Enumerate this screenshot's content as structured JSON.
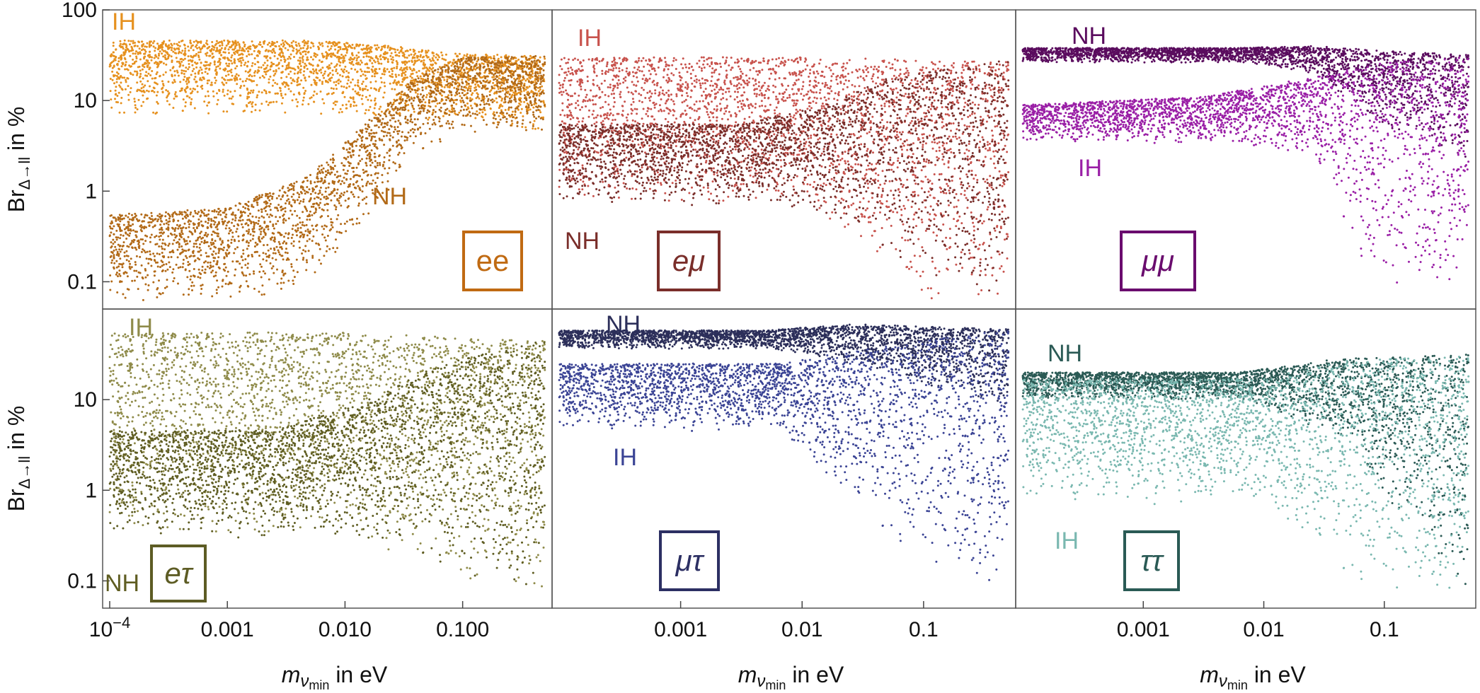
{
  "chart_data": [
    {
      "type": "scatter",
      "title": "",
      "panel": "ee",
      "label": "ee",
      "color": "#c06a12",
      "series": [
        {
          "name": "IH",
          "color": "#e6911f",
          "profile": [
            [
              -4.0,
              6.8,
              46
            ],
            [
              -2.3,
              6.8,
              46
            ],
            [
              -1.6,
              6.6,
              40
            ],
            [
              -1.1,
              5.6,
              33
            ],
            [
              -0.3,
              4.3,
              31
            ]
          ]
        },
        {
          "name": "NH",
          "color": "#b26a18",
          "profile": [
            [
              -4.0,
              0.06,
              0.55
            ],
            [
              -3.0,
              0.06,
              0.65
            ],
            [
              -2.3,
              0.08,
              1.5
            ],
            [
              -1.8,
              0.5,
              6.0
            ],
            [
              -1.4,
              2.5,
              18
            ],
            [
              -1.0,
              4.5,
              30
            ],
            [
              -0.3,
              4.3,
              31
            ]
          ]
        }
      ],
      "annotations": [
        "IH",
        "NH"
      ],
      "ylabel": "Br_{Δ→ll} in %",
      "ylim": [
        0.05,
        100
      ],
      "xlim": [
        -4.0,
        -0.3
      ],
      "yscale": "log",
      "yticks": [
        "100",
        "10",
        "1",
        "0.1"
      ]
    },
    {
      "type": "scatter",
      "title": "",
      "panel": "eμ",
      "label": "eμ",
      "color": "#7a2e2a",
      "series": [
        {
          "name": "IH",
          "color": "#c8534d",
          "profile": [
            [
              -4.0,
              0.7,
              30
            ],
            [
              -2.0,
              0.7,
              30
            ],
            [
              -1.0,
              0.06,
              28
            ],
            [
              -0.3,
              0.05,
              27
            ]
          ]
        },
        {
          "name": "NH",
          "color": "#7a2e2a",
          "profile": [
            [
              -4.0,
              0.7,
              5.5
            ],
            [
              -2.5,
              0.7,
              5.5
            ],
            [
              -1.8,
              0.5,
              9
            ],
            [
              -1.3,
              0.2,
              18
            ],
            [
              -0.3,
              0.05,
              28
            ]
          ]
        }
      ],
      "annotations": [
        "IH",
        "NH"
      ],
      "ylim": [
        0.05,
        100
      ],
      "xlim": [
        -4.0,
        -0.3
      ],
      "yscale": "log"
    },
    {
      "type": "scatter",
      "title": "",
      "panel": "μμ",
      "label": "μμ",
      "color": "#6a0c6e",
      "series": [
        {
          "name": "NH",
          "color": "#5a0c5e",
          "profile": [
            [
              -4.0,
              26,
              38
            ],
            [
              -2.2,
              26,
              38
            ],
            [
              -1.6,
              20,
              40
            ],
            [
              -1.1,
              6,
              36
            ],
            [
              -0.3,
              2,
              32
            ]
          ]
        },
        {
          "name": "IH",
          "color": "#9a1fa6",
          "profile": [
            [
              -4.0,
              3.4,
              9
            ],
            [
              -2.5,
              3.4,
              11
            ],
            [
              -1.6,
              2.4,
              18
            ],
            [
              -1.1,
              0.1,
              26
            ],
            [
              -0.3,
              0.08,
              30
            ]
          ]
        }
      ],
      "annotations": [
        "NH",
        "IH"
      ],
      "ylim": [
        0.05,
        100
      ],
      "xlim": [
        -4.0,
        -0.3
      ],
      "yscale": "log"
    },
    {
      "type": "scatter",
      "title": "",
      "panel": "eτ",
      "label": "eτ",
      "color": "#5d5c24",
      "series": [
        {
          "name": "IH",
          "color": "#8f8b4a",
          "profile": [
            [
              -4.0,
              0.3,
              55
            ],
            [
              -2.0,
              0.3,
              55
            ],
            [
              -1.0,
              0.1,
              48
            ],
            [
              -0.3,
              0.06,
              45
            ]
          ]
        },
        {
          "name": "NH",
          "color": "#5f5d22",
          "profile": [
            [
              -4.0,
              0.3,
              4.6
            ],
            [
              -2.6,
              0.3,
              4.6
            ],
            [
              -1.8,
              0.25,
              10
            ],
            [
              -1.2,
              0.15,
              25
            ],
            [
              -0.3,
              0.06,
              45
            ]
          ]
        }
      ],
      "annotations": [
        "IH",
        "NH"
      ],
      "ylabel": "Br_{Δ→ll} in %",
      "xlabel": "m_{ν_min} in eV",
      "ylim": [
        0.05,
        100
      ],
      "xlim": [
        -4.0,
        -0.3
      ],
      "yscale": "log",
      "yticks": [
        "10",
        "1",
        "0.1"
      ],
      "xticks": [
        "10^-4",
        "0.001",
        "0.010",
        "0.100"
      ]
    },
    {
      "type": "scatter",
      "title": "",
      "panel": "μτ",
      "label": "μτ",
      "color": "#2c2f63",
      "series": [
        {
          "name": "NH",
          "color": "#2c2f5a",
          "profile": [
            [
              -4.0,
              36,
              58
            ],
            [
              -2.3,
              36,
              58
            ],
            [
              -1.6,
              25,
              68
            ],
            [
              -0.3,
              8,
              60
            ]
          ]
        },
        {
          "name": "IH",
          "color": "#3b4495",
          "profile": [
            [
              -4.0,
              4.5,
              25
            ],
            [
              -2.2,
              4.5,
              25
            ],
            [
              -1.3,
              0.3,
              40
            ],
            [
              -0.3,
              0.06,
              60
            ]
          ]
        }
      ],
      "annotations": [
        "NH",
        "IH"
      ],
      "xlabel": "m_{ν_min} in eV",
      "ylim": [
        0.05,
        100
      ],
      "xlim": [
        -4.0,
        -0.3
      ],
      "yscale": "log",
      "xticks": [
        "0.001",
        "0.01",
        "0.1"
      ]
    },
    {
      "type": "scatter",
      "title": "",
      "panel": "ττ",
      "label": "ττ",
      "color": "#2a5a55",
      "series": [
        {
          "name": "NH",
          "color": "#2b5a55",
          "profile": [
            [
              -4.0,
              10,
              20
            ],
            [
              -2.2,
              10,
              20
            ],
            [
              -1.4,
              4,
              28
            ],
            [
              -0.3,
              0.06,
              32
            ]
          ]
        },
        {
          "name": "IH",
          "color": "#7ab8b0",
          "profile": [
            [
              -4.0,
              0.7,
              17
            ],
            [
              -2.0,
              0.7,
              17
            ],
            [
              -1.3,
              0.1,
              28
            ],
            [
              -0.3,
              0.06,
              30
            ]
          ]
        }
      ],
      "annotations": [
        "NH",
        "IH"
      ],
      "xlabel": "m_{ν_min} in eV",
      "ylim": [
        0.05,
        100
      ],
      "xlim": [
        -4.0,
        -0.3
      ],
      "yscale": "log",
      "xticks": [
        "0.001",
        "0.01",
        "0.1"
      ]
    }
  ]
}
